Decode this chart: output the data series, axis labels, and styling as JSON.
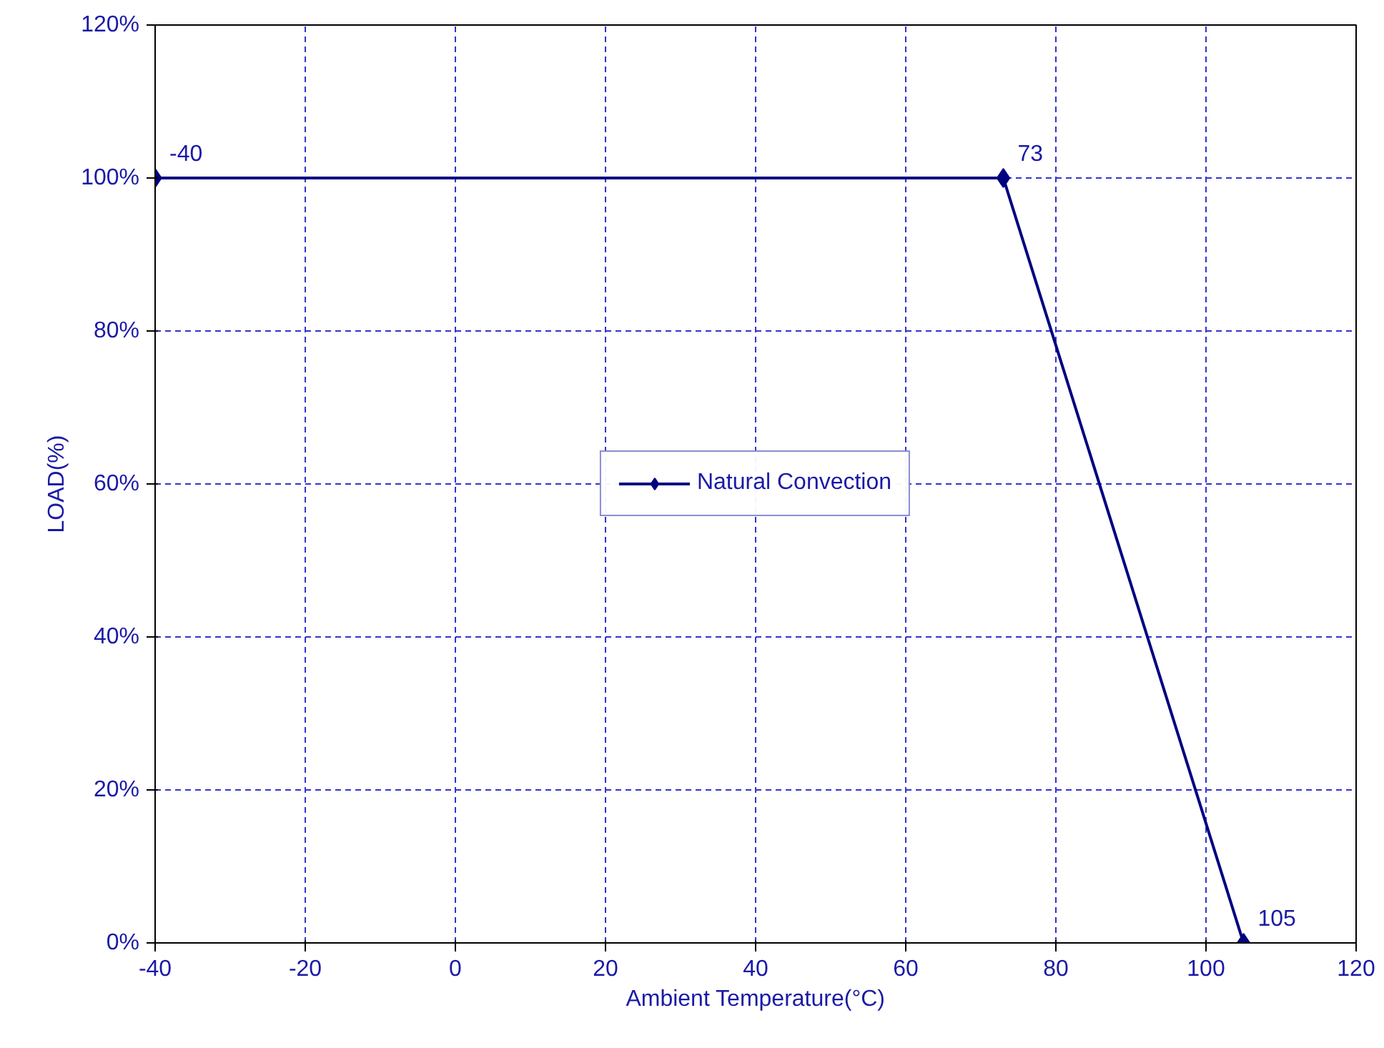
{
  "chart_data": {
    "type": "line",
    "xlabel": "Ambient Temperature(°C)",
    "ylabel": "LOAD(%)",
    "x": [
      -40,
      73,
      105
    ],
    "series": [
      {
        "name": "Natural Convection",
        "color": "#000080",
        "values": [
          100,
          100,
          0
        ]
      }
    ],
    "xlim": [
      -40,
      120
    ],
    "xticks": [
      -40,
      -20,
      0,
      20,
      40,
      60,
      80,
      100,
      120
    ],
    "ylim": [
      0,
      120
    ],
    "yticks": [
      {
        "value": 0,
        "label": "0%"
      },
      {
        "value": 20,
        "label": "20%"
      },
      {
        "value": 40,
        "label": "40%"
      },
      {
        "value": 60,
        "label": "60%"
      },
      {
        "value": 80,
        "label": "80%"
      },
      {
        "value": 100,
        "label": "100%"
      },
      {
        "value": 120,
        "label": "120%"
      }
    ],
    "annotations": [
      {
        "text": "-40",
        "x": -40,
        "y": 100
      },
      {
        "text": "73",
        "x": 73,
        "y": 100
      },
      {
        "text": "105",
        "x": 105,
        "y": 0
      }
    ],
    "grid": true,
    "legend": "center",
    "marker": "diamond",
    "line_style": "solid"
  }
}
